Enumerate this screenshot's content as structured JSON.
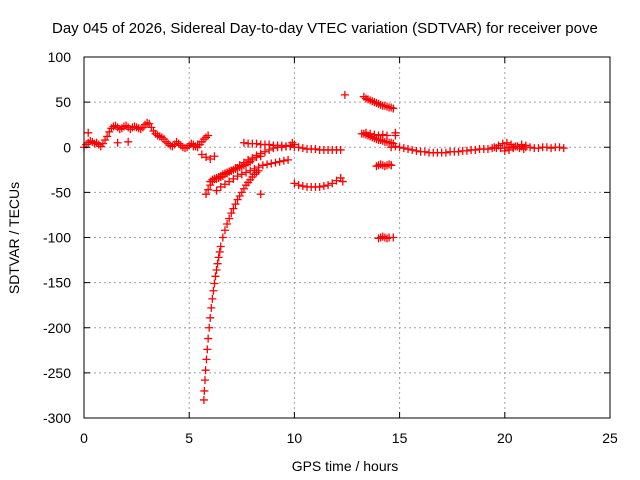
{
  "chart_data": {
    "type": "scatter",
    "title": "Day 045 of 2026, Sidereal Day-to-day VTEC variation (SDTVAR) for receiver pove",
    "xlabel": "GPS time / hours",
    "ylabel": "SDTVAR / TECUs",
    "xlim": [
      0,
      25
    ],
    "ylim": [
      -300,
      100
    ],
    "xticks": [
      0,
      5,
      10,
      15,
      20,
      25
    ],
    "yticks": [
      100,
      50,
      0,
      -50,
      -100,
      -150,
      -200,
      -250,
      -300
    ],
    "grid": true,
    "marker": "+",
    "color": "#ff0000",
    "series": [
      {
        "name": "SDTVAR",
        "x": [
          0,
          0.1,
          0.2,
          0.3,
          0.4,
          0.5,
          0.6,
          0.7,
          0.8,
          0.9,
          1.0,
          1.1,
          1.2,
          1.3,
          1.4,
          1.5,
          1.6,
          1.7,
          1.8,
          1.9,
          2.0,
          2.1,
          2.2,
          2.3,
          2.4,
          2.5,
          2.6,
          2.7,
          2.8,
          2.9,
          3.0,
          3.1,
          3.2,
          3.3,
          3.4,
          3.5,
          3.6,
          3.7,
          3.8,
          3.9,
          4.0,
          4.1,
          4.2,
          4.3,
          4.4,
          4.5,
          4.6,
          4.7,
          4.8,
          4.9,
          5.0,
          5.1,
          5.2,
          5.3,
          5.4,
          5.5,
          5.6,
          5.7,
          5.8,
          5.9,
          0.2,
          1.6,
          2.1,
          5.2,
          5.4,
          5.6,
          5.8,
          6.0,
          6.2,
          5.8,
          5.9,
          6.0,
          6.1,
          6.2,
          6.3,
          6.4,
          6.5,
          6.6,
          6.7,
          6.8,
          6.9,
          7.0,
          7.1,
          7.2,
          7.3,
          7.4,
          7.5,
          7.6,
          7.7,
          7.8,
          7.9,
          8.0,
          8.2,
          8.4,
          8.6,
          8.8,
          9.0,
          9.2,
          9.4,
          9.6,
          9.8,
          10.0,
          6.0,
          6.1,
          6.2,
          6.3,
          6.4,
          6.5,
          6.6,
          6.7,
          6.8,
          6.9,
          7.0,
          7.2,
          7.4,
          7.6,
          7.8,
          8.0,
          8.2,
          8.4,
          5.7,
          5.72,
          5.75,
          5.78,
          5.82,
          5.86,
          5.9,
          5.95,
          6.0,
          6.05,
          6.1,
          6.15,
          6.2,
          6.25,
          6.3,
          6.35,
          6.4,
          6.45,
          6.5,
          6.6,
          6.7,
          6.8,
          6.9,
          7.0,
          7.1,
          7.2,
          7.3,
          7.4,
          7.5,
          7.6,
          7.7,
          7.8,
          7.9,
          8.0,
          8.1,
          8.2,
          8.3,
          8.4,
          6.3,
          6.5,
          6.7,
          6.9,
          7.1,
          7.3,
          7.5,
          7.7,
          7.9,
          8.1,
          8.3,
          8.5,
          8.7,
          8.9,
          9.1,
          9.3,
          9.5,
          9.7,
          9.9,
          7.6,
          7.8,
          8.0,
          8.2,
          8.4,
          8.6,
          8.8,
          9.0,
          9.2,
          9.4,
          9.6,
          9.8,
          10.0,
          10.2,
          10.4,
          10.6,
          10.8,
          11.0,
          11.2,
          11.4,
          11.6,
          11.8,
          12.0,
          12.2,
          12.3,
          10.0,
          10.2,
          10.4,
          10.6,
          10.8,
          11.0,
          11.2,
          11.4,
          11.6,
          11.8,
          12.0,
          12.2,
          12.4,
          13.3,
          13.4,
          13.5,
          13.6,
          13.7,
          13.8,
          13.9,
          14.0,
          14.1,
          14.2,
          14.3,
          14.4,
          14.5,
          14.6,
          14.7,
          14.8,
          13.3,
          13.4,
          13.5,
          13.6,
          13.7,
          13.8,
          13.9,
          14.0,
          14.1,
          14.2,
          14.3,
          14.4,
          14.5,
          14.6,
          14.7,
          14.8,
          13.2,
          13.4,
          13.6,
          13.8,
          14.0,
          14.2,
          14.4,
          14.6,
          13.9,
          14.0,
          14.1,
          14.2,
          14.3,
          14.4,
          14.5,
          14.6,
          14.7,
          14.0,
          14.1,
          14.2,
          14.3,
          14.4,
          14.5,
          14.6,
          14.8,
          15.0,
          15.2,
          15.4,
          15.6,
          15.8,
          16.0,
          16.2,
          16.4,
          16.6,
          16.8,
          17.0,
          17.2,
          17.4,
          17.6,
          17.8,
          18.0,
          18.2,
          18.4,
          18.6,
          18.8,
          19.0,
          19.2,
          19.4,
          19.6,
          19.8,
          20.0,
          20.2,
          20.4,
          20.6,
          20.8,
          21.0,
          21.2,
          21.4,
          21.6,
          21.8,
          22.0,
          22.2,
          22.4,
          22.6,
          22.8,
          19.5,
          19.7,
          19.9,
          20.1,
          20.3,
          20.5,
          20.7,
          20.9,
          20.0,
          20.2,
          20.4,
          20.6,
          20.8,
          21.0
        ],
        "y": [
          0,
          3,
          5,
          7,
          6,
          4,
          5,
          3,
          1,
          4,
          8,
          12,
          17,
          21,
          23,
          24,
          22,
          20,
          21,
          23,
          24,
          22,
          20,
          22,
          23,
          22,
          21,
          20,
          22,
          25,
          27,
          26,
          22,
          18,
          15,
          13,
          12,
          11,
          9,
          6,
          4,
          2,
          1,
          3,
          6,
          4,
          2,
          0,
          -1,
          0,
          2,
          4,
          3,
          1,
          0,
          3,
          6,
          9,
          11,
          13,
          16,
          5,
          6,
          1,
          3,
          -8,
          -11,
          -13,
          -10,
          -52,
          -47,
          -42,
          -38,
          -35,
          -34,
          -33,
          -32,
          -30,
          -29,
          -28,
          -27,
          -26,
          -25,
          -24,
          -23,
          -22,
          -21,
          -20,
          -19,
          -17,
          -16,
          -14,
          -9,
          -7,
          -5,
          -3,
          -1,
          0,
          0,
          1,
          2,
          3,
          -38,
          -36,
          -35,
          -35,
          -34,
          -33,
          -32,
          -30,
          -29,
          -27,
          -26,
          -23,
          -20,
          -17,
          -14,
          -12,
          -11,
          -10,
          -280,
          -270,
          -258,
          -247,
          -235,
          -224,
          -212,
          -200,
          -189,
          -178,
          -168,
          -159,
          -151,
          -143,
          -136,
          -129,
          -122,
          -116,
          -110,
          -100,
          -92,
          -85,
          -79,
          -73,
          -68,
          -63,
          -58,
          -54,
          -50,
          -46,
          -42,
          -39,
          -36,
          -33,
          -30,
          -28,
          -26,
          -52,
          -48,
          -44,
          -41,
          -38,
          -35,
          -32,
          -30,
          -28,
          -26,
          -24,
          -22,
          -20,
          -19,
          -18,
          -17,
          -16,
          -15,
          -14,
          5,
          5,
          4,
          4,
          4,
          3,
          3,
          3,
          2,
          2,
          2,
          1,
          1,
          0,
          0,
          -1,
          -2,
          -2,
          -2,
          -3,
          -3,
          -3,
          -3,
          -3,
          -3,
          -38,
          -40,
          -42,
          -43,
          -44,
          -44,
          -44,
          -44,
          -43,
          -42,
          -40,
          -37,
          -34,
          58,
          56,
          54,
          53,
          52,
          51,
          50,
          49,
          48,
          47,
          46,
          46,
          45,
          44,
          44,
          43,
          16,
          15,
          14,
          13,
          12,
          11,
          10,
          9,
          8,
          8,
          7,
          6,
          6,
          5,
          5,
          4,
          13,
          15,
          16,
          15,
          14,
          13,
          14,
          13,
          -20,
          -21,
          -20,
          -19,
          -20,
          -21,
          -20,
          -19,
          -20,
          -100,
          -101,
          -100,
          -99,
          -100,
          -101,
          -100,
          0,
          1,
          0,
          -1,
          -2,
          -3,
          -4,
          -5,
          -5,
          -6,
          -6,
          -6,
          -6,
          -6,
          -5,
          -5,
          -5,
          -4,
          -4,
          -3,
          -3,
          -2,
          -2,
          -2,
          -1,
          -1,
          -1,
          -1,
          0,
          0,
          1,
          1,
          0,
          0,
          -1,
          -1,
          0,
          0,
          -1,
          0,
          0,
          -1,
          0,
          2,
          4,
          5,
          3,
          1,
          -1,
          -2,
          -4,
          -3,
          -1,
          1,
          3,
          2
        ]
      }
    ]
  }
}
